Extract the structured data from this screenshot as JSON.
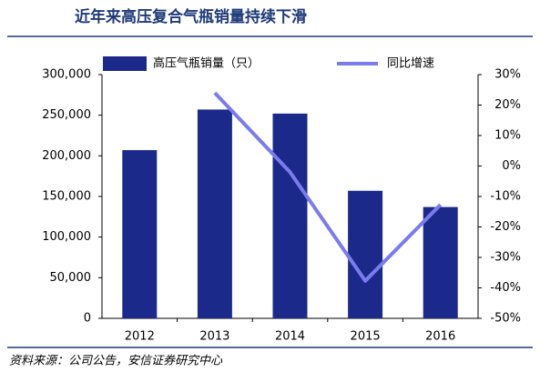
{
  "chart_data": {
    "type": "bar",
    "title": "近年来高压复合气瓶销量持续下滑",
    "categories": [
      "2012",
      "2013",
      "2014",
      "2015",
      "2016"
    ],
    "series": [
      {
        "name": "高压气瓶销量（只）",
        "color": "#1b2a8a",
        "type": "bar",
        "values": [
          207000,
          257000,
          252000,
          157000,
          137000
        ]
      },
      {
        "name": "同比增速",
        "color": "#7b7bee",
        "type": "line",
        "axis": "y2",
        "values": [
          null,
          24,
          -2,
          -37.7,
          -12.7
        ]
      }
    ],
    "ylim": [
      0,
      300000
    ],
    "yticks": [
      0,
      {
        "value": 50000,
        "label": "50,000"
      },
      {
        "value": 100000,
        "label": "100,000"
      },
      {
        "value": 150000,
        "label": "150,000"
      },
      {
        "value": 200000,
        "label": "200,000"
      },
      {
        "value": 250000,
        "label": "250,000"
      },
      {
        "value": 300000,
        "label": "300,000"
      }
    ],
    "y2lim": [
      -50,
      30
    ],
    "y2ticks": [
      {
        "value": -50,
        "label": "-50%"
      },
      {
        "value": -40,
        "label": "-40%"
      },
      {
        "value": -30,
        "label": "-30%"
      },
      {
        "value": -20,
        "label": "-20%"
      },
      {
        "value": -10,
        "label": "-10%"
      },
      {
        "value": 0,
        "label": "0%"
      },
      {
        "value": 10,
        "label": "10%"
      },
      {
        "value": 20,
        "label": "20%"
      },
      {
        "value": 30,
        "label": "30%"
      }
    ],
    "source": "资料来源：公司公告，安信证券研究中心"
  }
}
